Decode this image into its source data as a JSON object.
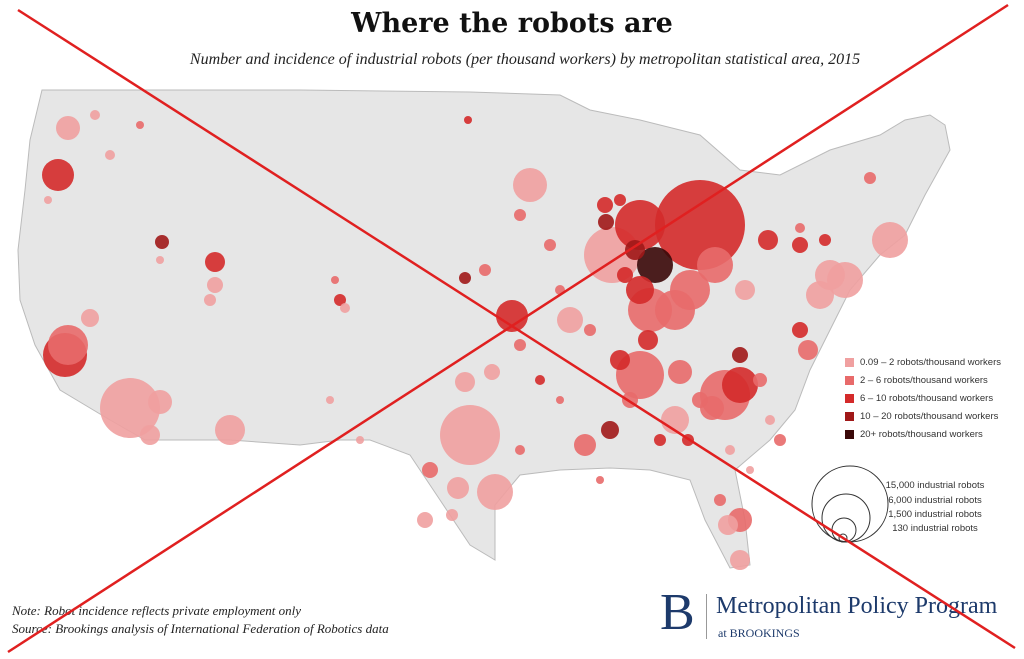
{
  "title": "Where the robots are",
  "subtitle": "Number and incidence of industrial robots (per thousand workers) by metropolitan statistical area, 2015",
  "legend_color": [
    {
      "label": "0.09 – 2 robots/thousand workers",
      "color": "#f0a0a0"
    },
    {
      "label": "2 – 6 robots/thousand workers",
      "color": "#e86a6a"
    },
    {
      "label": "6 – 10 robots/thousand workers",
      "color": "#d42a2a"
    },
    {
      "label": "10 – 20 robots/thousand workers",
      "color": "#a01818"
    },
    {
      "label": "20+ robots/thousand workers",
      "color": "#3a0808"
    }
  ],
  "legend_size": [
    "15,000 industrial robots",
    "6,000 industrial robots",
    "1,500 industrial robots",
    "130 industrial robots"
  ],
  "note": "Note: Robot incidence reflects private employment only",
  "source": "Source: Brookings analysis of International Federation of Robotics data",
  "logo": {
    "letter": "B",
    "main": "Metropolitan Policy Program",
    "sub": "at BROOKINGS"
  },
  "land_color": "#e6e6e6",
  "cross_color": "#e02020"
}
